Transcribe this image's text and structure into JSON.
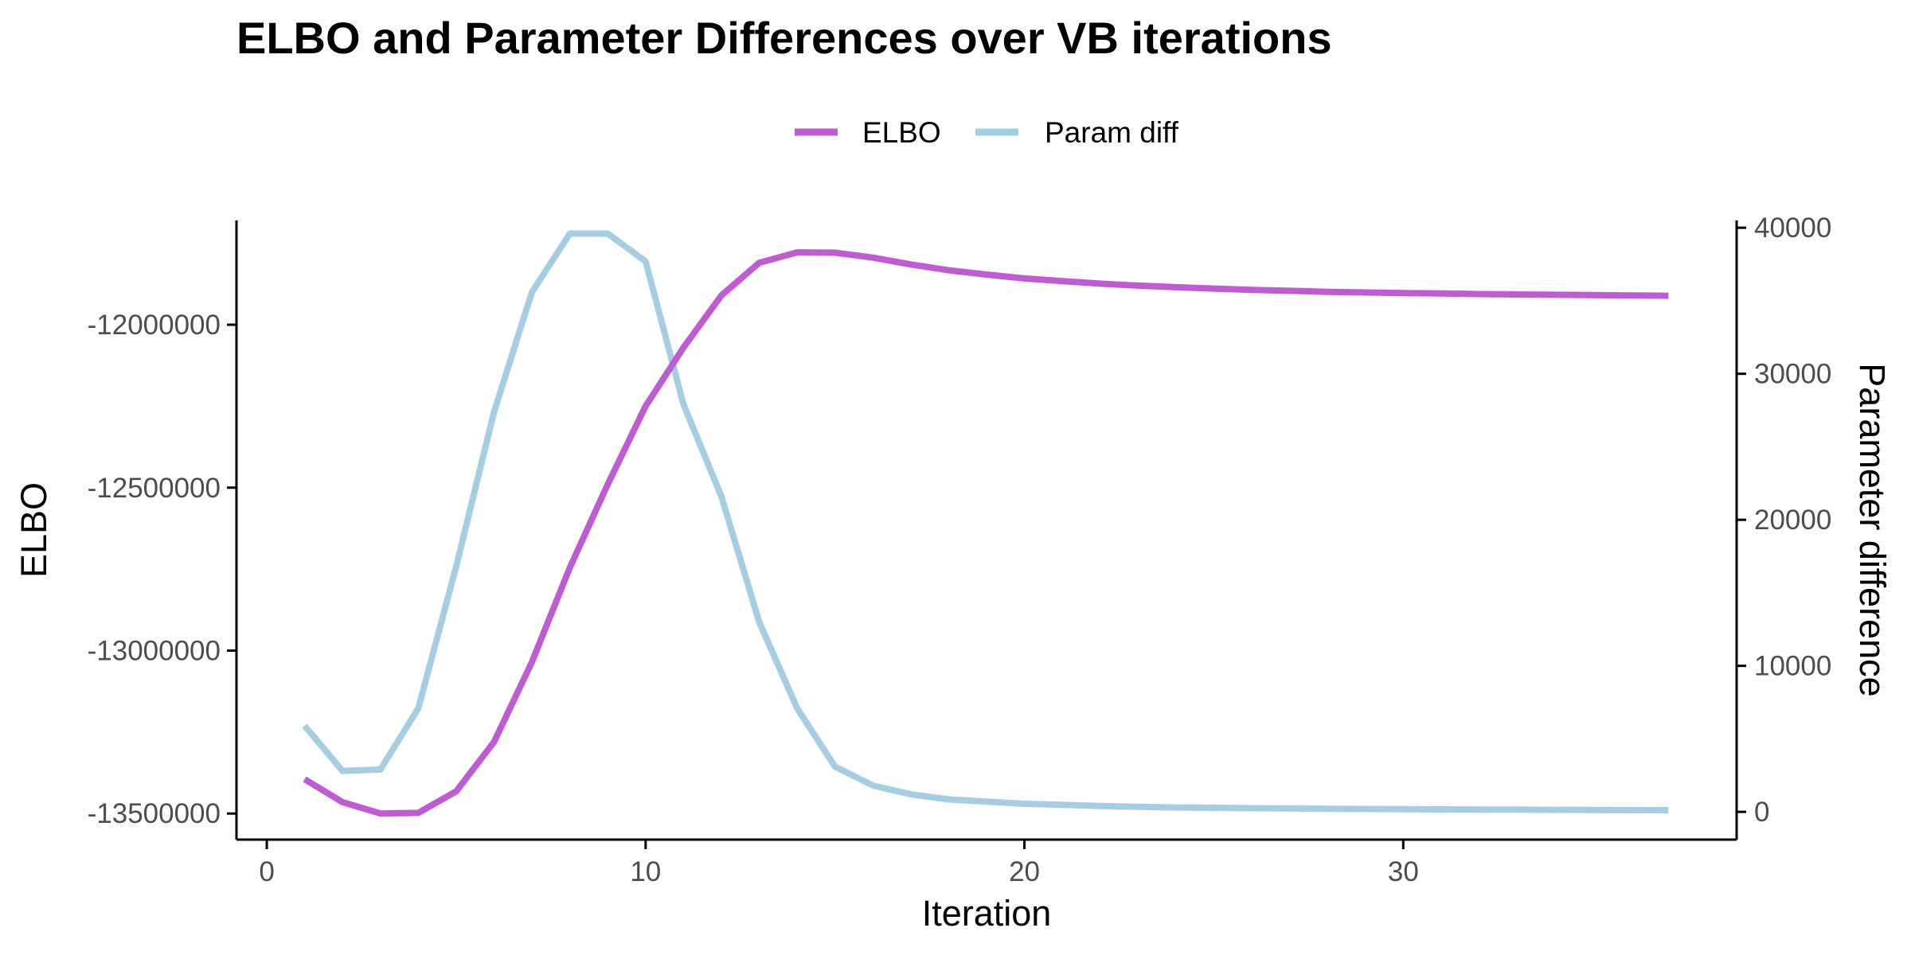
{
  "chart_data": {
    "type": "line",
    "title": "ELBO and Parameter Differences over VB iterations",
    "xlabel": "Iteration",
    "ylabel": "ELBO",
    "y2label": "Parameter difference",
    "legend_position": "top",
    "grid": false,
    "xlim": [
      -0.8,
      38.8
    ],
    "ylim": [
      -13580000,
      -11680000
    ],
    "y2lim": [
      -1900,
      40500
    ],
    "x_ticks": [
      0,
      10,
      20,
      30
    ],
    "y_ticks": [
      -12000000,
      -12500000,
      -13000000,
      -13500000
    ],
    "y2_ticks": [
      0,
      10000,
      20000,
      30000,
      40000
    ],
    "x_tick_labels": [
      "0",
      "10",
      "20",
      "30"
    ],
    "y_tick_labels": [
      "-12000000",
      "-12500000",
      "-13000000",
      "-13500000"
    ],
    "y2_tick_labels": [
      "0",
      "10000",
      "20000",
      "30000",
      "40000"
    ],
    "x": [
      1,
      2,
      3,
      4,
      5,
      6,
      7,
      8,
      9,
      10,
      11,
      12,
      13,
      14,
      15,
      16,
      17,
      18,
      19,
      20,
      21,
      22,
      23,
      24,
      25,
      26,
      27,
      28,
      29,
      30,
      31,
      32,
      33,
      34,
      35,
      36,
      37
    ],
    "series": [
      {
        "name": "ELBO",
        "axis": "left",
        "color": "#bf5bd3",
        "values": [
          -13395000,
          -13465000,
          -13500000,
          -13498000,
          -13432000,
          -13280000,
          -13035000,
          -12745000,
          -12490000,
          -12250000,
          -12070000,
          -11910000,
          -11810000,
          -11778000,
          -11779000,
          -11794000,
          -11815000,
          -11833000,
          -11846000,
          -11858000,
          -11866000,
          -11874000,
          -11880000,
          -11885000,
          -11889000,
          -11893000,
          -11896000,
          -11899000,
          -11901000,
          -11903000,
          -11904000,
          -11906000,
          -11907000,
          -11908000,
          -11909000,
          -11910000,
          -11911000
        ]
      },
      {
        "name": "Param diff",
        "axis": "right",
        "color": "#a6cee3",
        "values": [
          5900,
          2800,
          2900,
          7100,
          16800,
          27400,
          35600,
          39600,
          39600,
          37700,
          27900,
          21600,
          13000,
          7100,
          3100,
          1800,
          1200,
          850,
          700,
          550,
          480,
          400,
          350,
          300,
          280,
          250,
          230,
          210,
          200,
          180,
          170,
          160,
          150,
          140,
          130,
          120,
          110
        ]
      }
    ]
  }
}
